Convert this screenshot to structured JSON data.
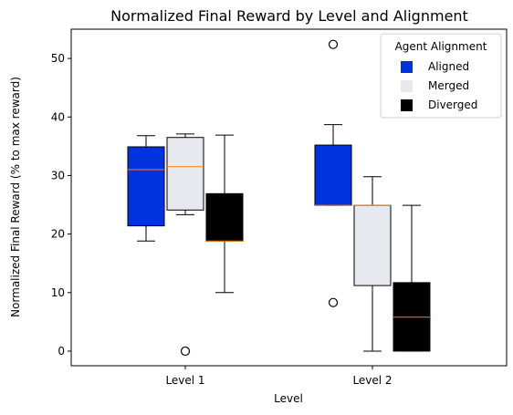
{
  "chart_data": {
    "type": "boxplot",
    "title": "Normalized Final Reward by Level and Alignment",
    "xlabel": "Level",
    "ylabel": "Normalized Final Reward (% to max reward)",
    "categories": [
      "Level 1",
      "Level 2"
    ],
    "ylim": [
      -2.5,
      55
    ],
    "yticks": [
      0,
      10,
      20,
      30,
      40,
      50
    ],
    "grid": false,
    "legend": {
      "title": "Agent Alignment",
      "position": "top-right"
    },
    "median_color": "#ff7f0e",
    "series": [
      {
        "name": "Aligned",
        "color": "#0033dd",
        "boxes": [
          {
            "whisker_low": 18.8,
            "q1": 21.4,
            "median": 31.0,
            "q3": 34.9,
            "whisker_high": 36.8,
            "outliers": []
          },
          {
            "whisker_low": 24.9,
            "q1": 24.9,
            "median": 24.9,
            "q3": 35.2,
            "whisker_high": 38.7,
            "outliers": [
              52.4,
              8.3
            ]
          }
        ]
      },
      {
        "name": "Merged",
        "color": "#e8e9ee",
        "boxes": [
          {
            "whisker_low": 23.3,
            "q1": 24.1,
            "median": 31.5,
            "q3": 36.5,
            "whisker_high": 37.1,
            "outliers": [
              0.0
            ]
          },
          {
            "whisker_low": 0.0,
            "q1": 11.2,
            "median": 24.9,
            "q3": 24.9,
            "whisker_high": 29.8,
            "outliers": []
          }
        ]
      },
      {
        "name": "Diverged",
        "color": "#000000",
        "boxes": [
          {
            "whisker_low": 10.0,
            "q1": 18.8,
            "median": 18.8,
            "q3": 26.9,
            "whisker_high": 36.9,
            "outliers": []
          },
          {
            "whisker_low": 0.0,
            "q1": 0.0,
            "median": 5.8,
            "q3": 11.7,
            "whisker_high": 24.9,
            "outliers": []
          }
        ]
      }
    ]
  }
}
